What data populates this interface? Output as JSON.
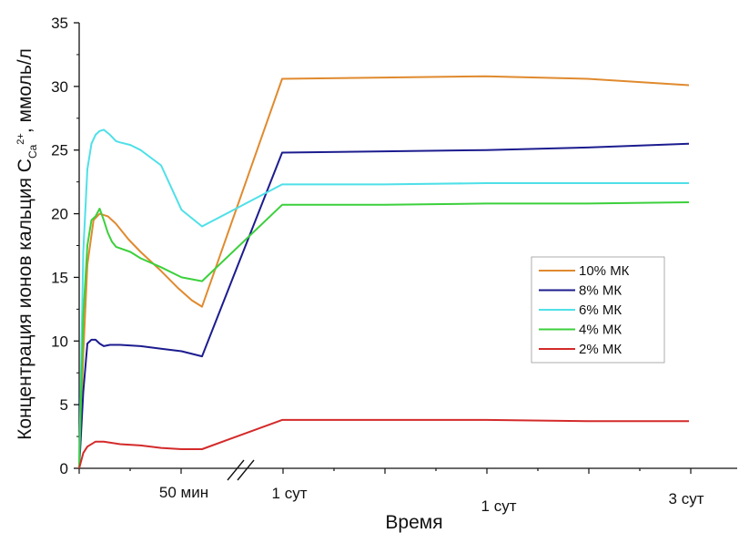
{
  "chart_data": {
    "type": "line",
    "title": "",
    "xlabel": "Время",
    "ylabel": {
      "main": "Концентрация ионов кальция C",
      "sub": "Ca",
      "sup": "2+",
      "unit": ", ммоль/л"
    },
    "ylim": [
      0,
      35
    ],
    "y_ticks": [
      "0",
      "5",
      "10",
      "15",
      "20",
      "25",
      "30",
      "35"
    ],
    "x_tick_labels": [
      {
        "text": "50 мин",
        "at": 50
      },
      {
        "text": "1 сут",
        "at": 100
      },
      {
        "text": "1 сут",
        "at": 200
      },
      {
        "text": "3 сут",
        "at": 300
      }
    ],
    "x_axis_break": true,
    "xlim": [
      0,
      320
    ],
    "legend_position": "right",
    "series": [
      {
        "name": "10% МК",
        "color": "#e08a2e",
        "x": [
          0,
          2,
          4,
          7,
          10,
          14,
          18,
          24,
          30,
          40,
          48,
          55,
          60,
          100,
          150,
          200,
          250,
          300
        ],
        "y": [
          0,
          9,
          16,
          19.5,
          20,
          19.8,
          19.2,
          18,
          17,
          15.5,
          14.2,
          13.2,
          12.7,
          30.6,
          30.7,
          30.8,
          30.6,
          30.1
        ]
      },
      {
        "name": "8% МК",
        "color": "#1c1c8f",
        "x": [
          0,
          2,
          4,
          6,
          8,
          10,
          12,
          15,
          20,
          30,
          40,
          50,
          60,
          100,
          150,
          200,
          250,
          300
        ],
        "y": [
          0,
          6,
          9.8,
          10.1,
          10.1,
          9.8,
          9.6,
          9.7,
          9.7,
          9.6,
          9.4,
          9.2,
          8.8,
          24.8,
          24.9,
          25.0,
          25.2,
          25.5
        ]
      },
      {
        "name": "6% МК",
        "color": "#4fe0e8",
        "x": [
          0,
          2,
          4,
          6,
          8,
          10,
          12,
          15,
          18,
          20,
          25,
          30,
          40,
          50,
          60,
          100,
          150,
          200,
          250,
          300
        ],
        "y": [
          0,
          17,
          23.5,
          25.5,
          26.2,
          26.5,
          26.6,
          26.2,
          25.7,
          25.6,
          25.4,
          25,
          23.8,
          20.3,
          19.0,
          22.3,
          22.3,
          22.4,
          22.4,
          22.4
        ]
      },
      {
        "name": "4% МК",
        "color": "#3cd03c",
        "x": [
          0,
          2,
          4,
          6,
          8,
          10,
          12,
          14,
          16,
          18,
          25,
          30,
          40,
          50,
          60,
          100,
          150,
          200,
          250,
          300
        ],
        "y": [
          0,
          12,
          17.5,
          19.5,
          19.8,
          20.4,
          19.5,
          18.5,
          17.8,
          17.4,
          17,
          16.5,
          15.8,
          15.0,
          14.7,
          20.7,
          20.7,
          20.8,
          20.8,
          20.9
        ]
      },
      {
        "name": "2% МК",
        "color": "#d42a2a",
        "x": [
          0,
          2,
          4,
          8,
          12,
          20,
          30,
          40,
          50,
          60,
          100,
          150,
          200,
          250,
          300
        ],
        "y": [
          0,
          1.2,
          1.7,
          2.1,
          2.1,
          1.9,
          1.8,
          1.6,
          1.5,
          1.5,
          3.8,
          3.8,
          3.8,
          3.7,
          3.7
        ]
      }
    ]
  }
}
